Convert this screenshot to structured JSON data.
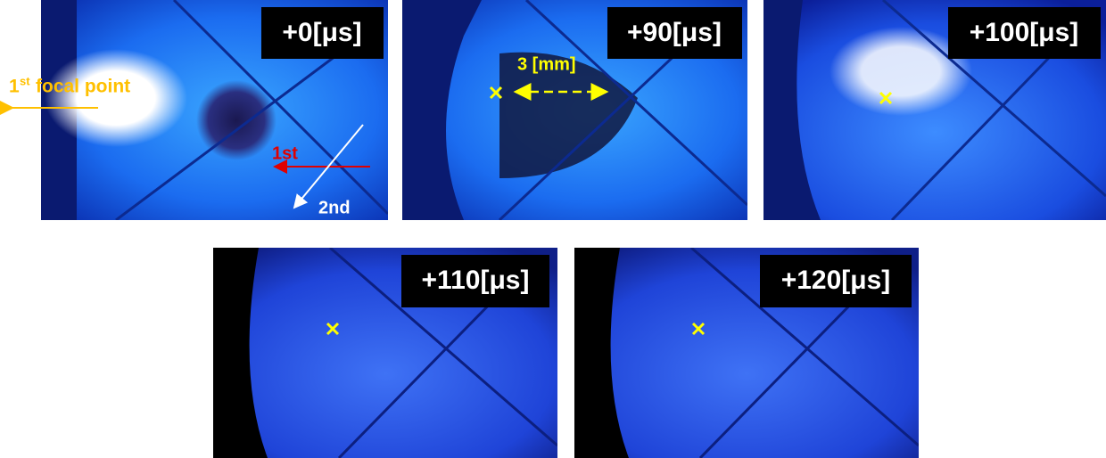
{
  "panels": [
    {
      "label": "+0[μs]"
    },
    {
      "label": "+90[μs]"
    },
    {
      "label": "+100[μs]"
    },
    {
      "label": "+110[μs]"
    },
    {
      "label": "+120[μs]"
    }
  ],
  "annotations": {
    "focal_ordinal": "1",
    "focal_ordinal_suffix": "st",
    "focal_text": "focal point",
    "first_beam": "1st",
    "second_beam": "2nd",
    "distance": "3 [mm]"
  }
}
